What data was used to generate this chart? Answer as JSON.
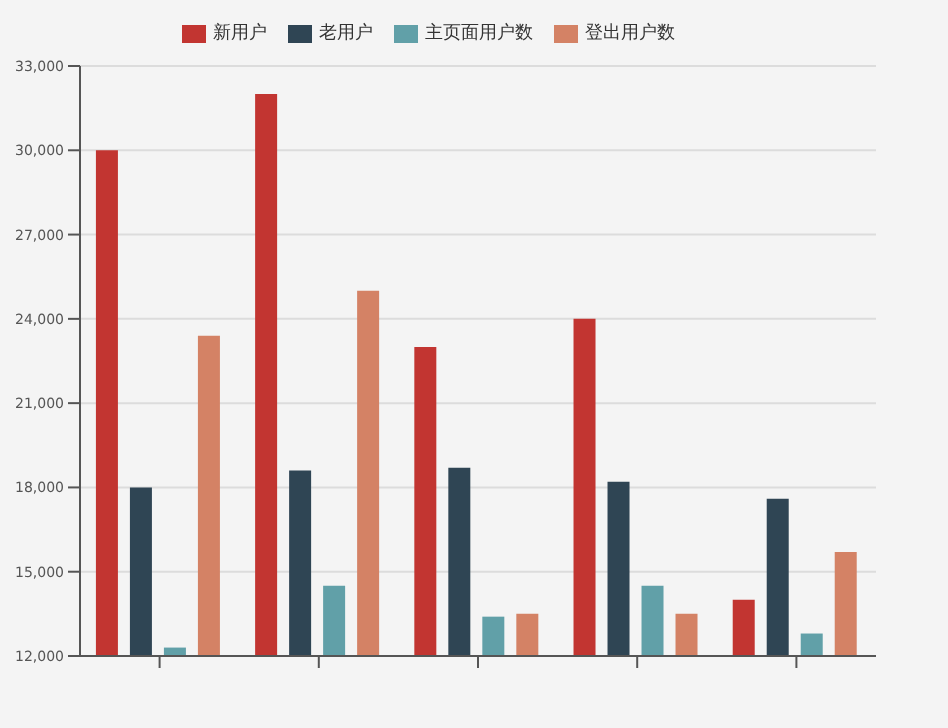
{
  "chart_data": {
    "type": "bar",
    "categories": [
      null,
      null,
      null,
      null,
      null
    ],
    "series": [
      {
        "name": "新用户",
        "color": "#c23531",
        "values": [
          30000,
          32000,
          23000,
          24000,
          14000
        ]
      },
      {
        "name": "老用户",
        "color": "#2f4554",
        "values": [
          18000,
          18600,
          18700,
          18200,
          17600
        ]
      },
      {
        "name": "主页面用户数",
        "color": "#61a0a8",
        "values": [
          12300,
          14500,
          13400,
          14500,
          12800
        ]
      },
      {
        "name": "登出用户数",
        "color": "#d48265",
        "values": [
          23400,
          25000,
          13500,
          13500,
          15700
        ]
      }
    ],
    "ylim": [
      12000,
      33000
    ],
    "yticks": [
      {
        "value": 12000,
        "label": "12,000"
      },
      {
        "value": 15000,
        "label": "15,000"
      },
      {
        "value": 18000,
        "label": "18,000"
      },
      {
        "value": 21000,
        "label": "21,000"
      },
      {
        "value": 24000,
        "label": "24,000"
      },
      {
        "value": 27000,
        "label": "27,000"
      },
      {
        "value": 30000,
        "label": "30,000"
      },
      {
        "value": 33000,
        "label": "33,000"
      }
    ],
    "grid": "y",
    "legend": "top"
  }
}
